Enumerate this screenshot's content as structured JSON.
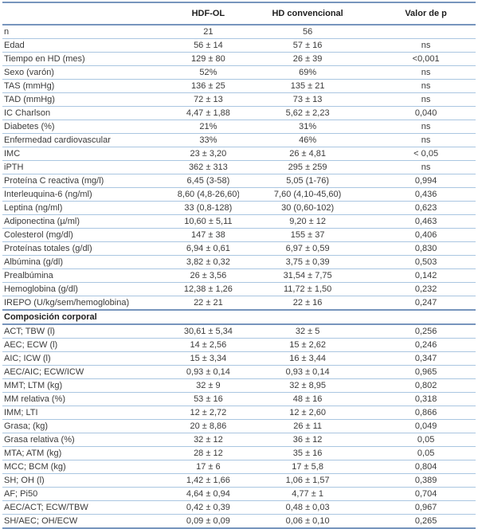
{
  "colors": {
    "rule_light": "#aac6e1",
    "rule_strong": "#7795bd",
    "text": "#3b3b3b",
    "header_text": "#1e1e1e"
  },
  "table": {
    "columns": [
      "",
      "HDF-OL",
      "HD convencional",
      "Valor de p"
    ],
    "rows": [
      {
        "label": "n",
        "hdf": "21",
        "hd": "56",
        "p": ""
      },
      {
        "label": "Edad",
        "hdf": "56 ± 14",
        "hd": "57 ± 16",
        "p": "ns"
      },
      {
        "label": "Tiempo en HD (mes)",
        "hdf": "129 ± 80",
        "hd": "26 ± 39",
        "p": "<0,001"
      },
      {
        "label": "Sexo (varón)",
        "hdf": "52%",
        "hd": "69%",
        "p": "ns"
      },
      {
        "label": "TAS (mmHg)",
        "hdf": "136 ± 25",
        "hd": "135 ± 21",
        "p": "ns"
      },
      {
        "label": "TAD (mmHg)",
        "hdf": "72 ± 13",
        "hd": "73 ± 13",
        "p": "ns"
      },
      {
        "label": "IC Charlson",
        "hdf": "4,47 ± 1,88",
        "hd": "5,62 ± 2,23",
        "p": "0,040"
      },
      {
        "label": "Diabetes (%)",
        "hdf": "21%",
        "hd": "31%",
        "p": "ns"
      },
      {
        "label": "Enfermedad cardiovascular",
        "hdf": "33%",
        "hd": "46%",
        "p": "ns"
      },
      {
        "label": "IMC",
        "hdf": "23 ± 3,20",
        "hd": "26 ± 4,81",
        "p": "< 0,05"
      },
      {
        "label": "iPTH",
        "hdf": "362 ± 313",
        "hd": "295 ± 259",
        "p": "ns"
      },
      {
        "label": "Proteína C reactiva (mg/l)",
        "hdf": "6,45 (3-58)",
        "hd": "5,05 (1-76)",
        "p": "0,994"
      },
      {
        "label": "Interleuquina-6 (ng/ml)",
        "hdf": "8,60 (4,8-26,60)",
        "hd": "7,60 (4,10-45,60)",
        "p": "0,436"
      },
      {
        "label": "Leptina (ng/ml)",
        "hdf": "33 (0,8-128)",
        "hd": "30 (0,60-102)",
        "p": "0,623"
      },
      {
        "label": "Adiponectina (µ/ml)",
        "hdf": "10,60 ± 5,11",
        "hd": "9,20 ± 12",
        "p": "0,463"
      },
      {
        "label": "Colesterol (mg/dl)",
        "hdf": "147 ± 38",
        "hd": "155 ± 37",
        "p": "0,406"
      },
      {
        "label": "Proteínas totales (g/dl)",
        "hdf": "6,94 ± 0,61",
        "hd": "6,97 ± 0,59",
        "p": "0,830"
      },
      {
        "label": "Albúmina (g/dl)",
        "hdf": "3,82 ± 0,32",
        "hd": "3,75 ± 0,39",
        "p": "0,503"
      },
      {
        "label": "Prealbúmina",
        "hdf": "26 ± 3,56",
        "hd": "31,54 ± 7,75",
        "p": "0,142"
      },
      {
        "label": "Hemoglobina (g/dl)",
        "hdf": "12,38 ± 1,26",
        "hd": "11,72 ± 1,50",
        "p": "0,232"
      },
      {
        "label": "IREPO (U/kg/sem/hemoglobina)",
        "hdf": "22 ± 21",
        "hd": "22 ± 16",
        "p": "0,247"
      },
      {
        "type": "section",
        "label": "Composición corporal"
      },
      {
        "label": "ACT; TBW (l)",
        "hdf": "30,61 ± 5,34",
        "hd": "32 ± 5",
        "p": "0,256"
      },
      {
        "label": "AEC; ECW (l)",
        "hdf": "14 ± 2,56",
        "hd": "15 ± 2,62",
        "p": "0,246"
      },
      {
        "label": "AIC; ICW (l)",
        "hdf": "15 ± 3,34",
        "hd": "16 ± 3,44",
        "p": "0,347"
      },
      {
        "label": "AEC/AIC; ECW/ICW",
        "hdf": "0,93 ± 0,14",
        "hd": "0,93 ± 0,14",
        "p": "0,965"
      },
      {
        "label": "MMT; LTM (kg)",
        "hdf": "32 ± 9",
        "hd": "32 ± 8,95",
        "p": "0,802"
      },
      {
        "label": "MM relativa (%)",
        "hdf": "53 ± 16",
        "hd": "48 ± 16",
        "p": "0,318"
      },
      {
        "label": "IMM; LTI",
        "hdf": "12 ± 2,72",
        "hd": "12 ± 2,60",
        "p": "0,866"
      },
      {
        "label": "Grasa; (kg)",
        "hdf": "20 ± 8,86",
        "hd": "26 ± 11",
        "p": "0,049"
      },
      {
        "label": "Grasa relativa (%)",
        "hdf": "32 ± 12",
        "hd": "36 ± 12",
        "p": "0,05"
      },
      {
        "label": "MTA; ATM (kg)",
        "hdf": "28 ± 12",
        "hd": "35 ± 16",
        "p": "0,05"
      },
      {
        "label": "MCC; BCM (kg)",
        "hdf": "17 ± 6",
        "hd": "17 ± 5,8",
        "p": "0,804"
      },
      {
        "label": "SH; OH (l)",
        "hdf": "1,42 ± 1,66",
        "hd": "1,06 ± 1,57",
        "p": "0,389"
      },
      {
        "label": "AF; Pi50",
        "hdf": "4,64 ± 0,94",
        "hd": "4,77 ± 1",
        "p": "0,704"
      },
      {
        "label": "AEC/ACT; ECW/TBW",
        "hdf": "0,42 ± 0,39",
        "hd": "0,48 ± 0,03",
        "p": "0,967"
      },
      {
        "label": "SH/AEC; OH/ECW",
        "hdf": "0,09 ± 0,09",
        "hd": "0,06 ± 0,10",
        "p": "0,265"
      }
    ]
  }
}
